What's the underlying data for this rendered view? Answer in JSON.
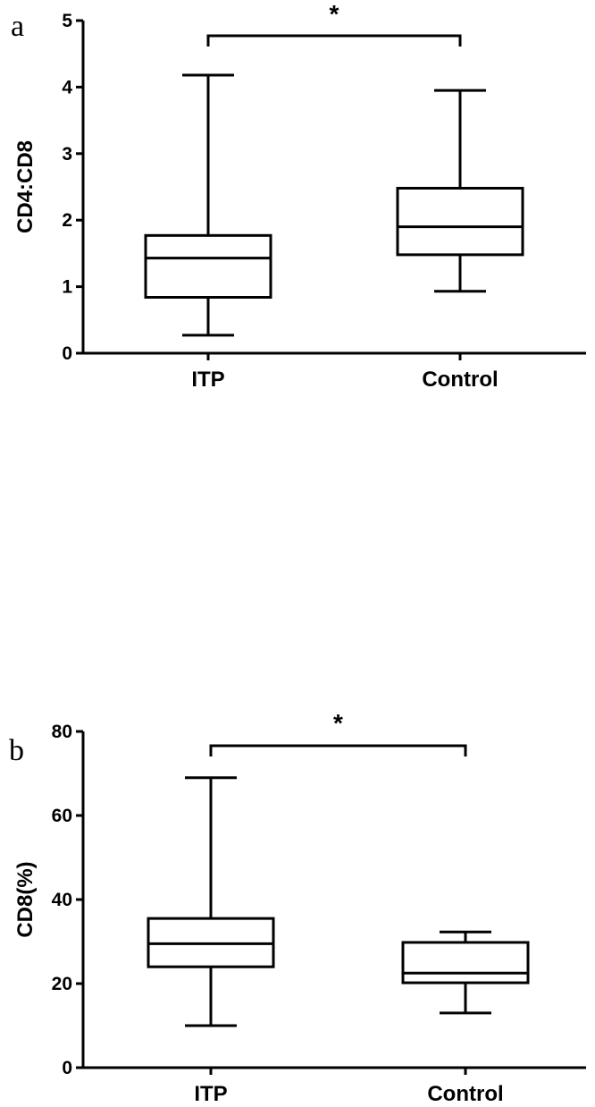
{
  "chart_data": [
    {
      "type": "box",
      "panel": "a",
      "ylabel": "CD4:CD8",
      "ylim": [
        0,
        5
      ],
      "yticks": [
        0,
        1,
        2,
        3,
        4,
        5
      ],
      "categories": [
        "ITP",
        "Control"
      ],
      "boxes": [
        {
          "name": "ITP",
          "min": 0.27,
          "q1": 0.84,
          "median": 1.43,
          "q3": 1.77,
          "max": 4.18
        },
        {
          "name": "Control",
          "min": 0.93,
          "q1": 1.48,
          "median": 1.9,
          "q3": 2.48,
          "max": 3.95
        }
      ],
      "significance": {
        "from": "ITP",
        "to": "Control",
        "label": "*"
      }
    },
    {
      "type": "box",
      "panel": "b",
      "ylabel": "CD8(%)",
      "ylim": [
        0,
        80
      ],
      "yticks": [
        0,
        20,
        40,
        60,
        80
      ],
      "categories": [
        "ITP",
        "Control"
      ],
      "boxes": [
        {
          "name": "ITP",
          "min": 10,
          "q1": 24,
          "median": 29.5,
          "q3": 35.5,
          "max": 69
        },
        {
          "name": "Control",
          "min": 13,
          "q1": 20.2,
          "median": 22.5,
          "q3": 29.8,
          "max": 32.3
        }
      ],
      "significance": {
        "from": "ITP",
        "to": "Control",
        "label": "*"
      }
    }
  ]
}
